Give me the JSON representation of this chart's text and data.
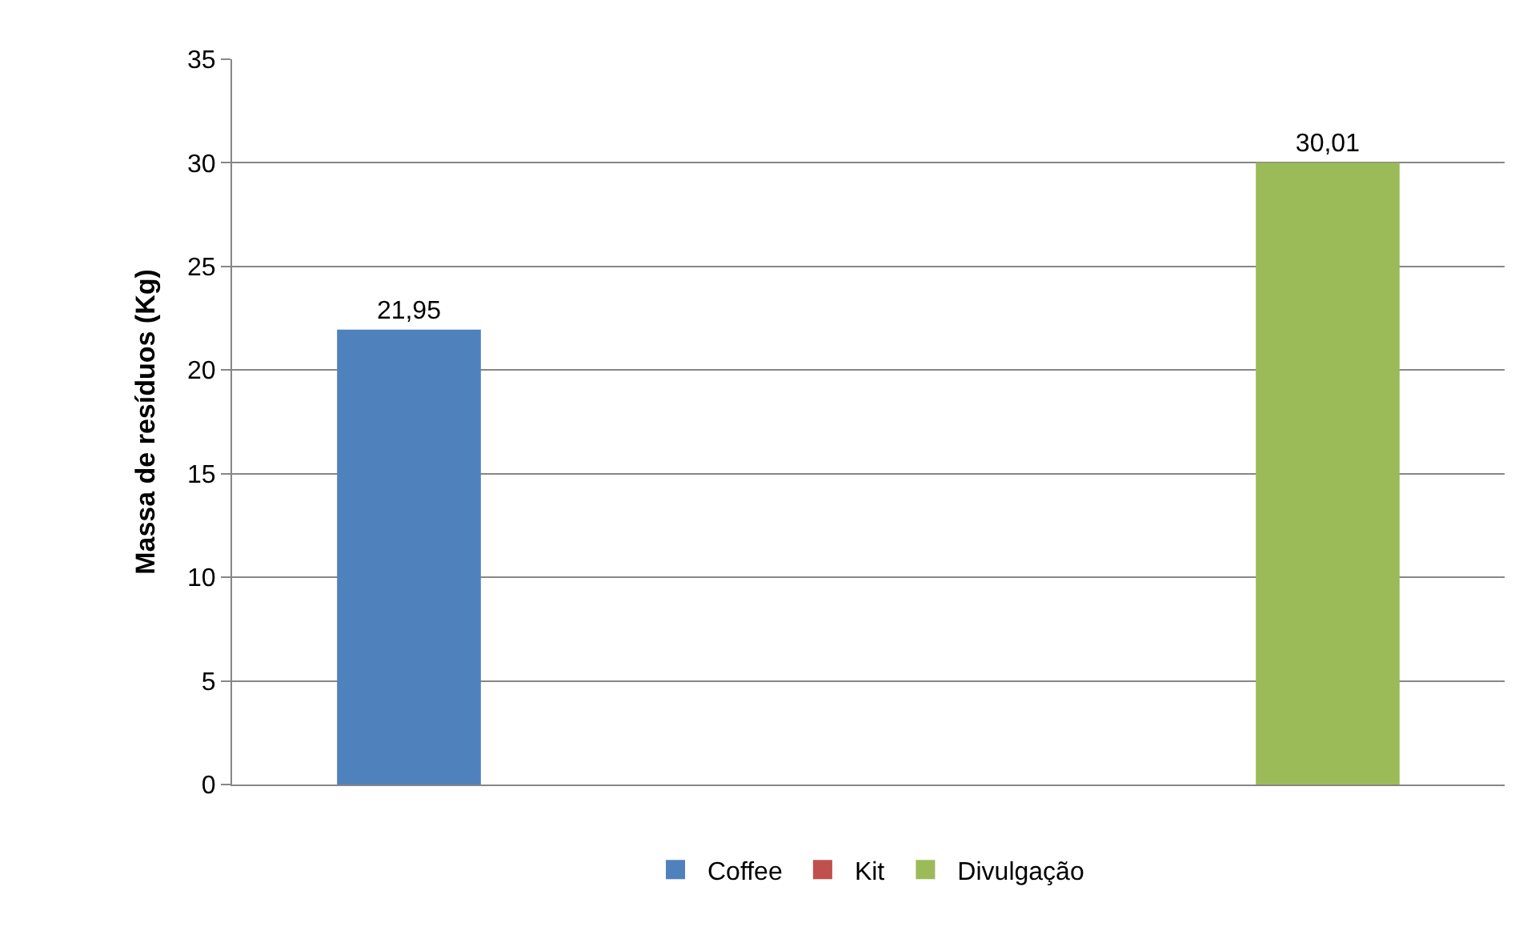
{
  "chart_data": {
    "type": "bar",
    "ylabel": "Massa de resíduos (Kg)",
    "categories": [
      null
    ],
    "series": [
      {
        "name": "Coffee",
        "color": "#4f81bd",
        "values": [
          21.95
        ],
        "value_labels": [
          "21,95"
        ]
      },
      {
        "name": "Kit",
        "color": "#c0504d",
        "values": [
          null
        ],
        "value_labels": [
          null
        ]
      },
      {
        "name": "Divulgação",
        "color": "#9bbb59",
        "values": [
          30.01
        ],
        "value_labels": [
          "30,01"
        ]
      }
    ],
    "ylim": [
      0,
      35
    ],
    "yticks": [
      0,
      5,
      10,
      15,
      20,
      25,
      30,
      35
    ],
    "grid": "y",
    "legend": "bottom"
  }
}
